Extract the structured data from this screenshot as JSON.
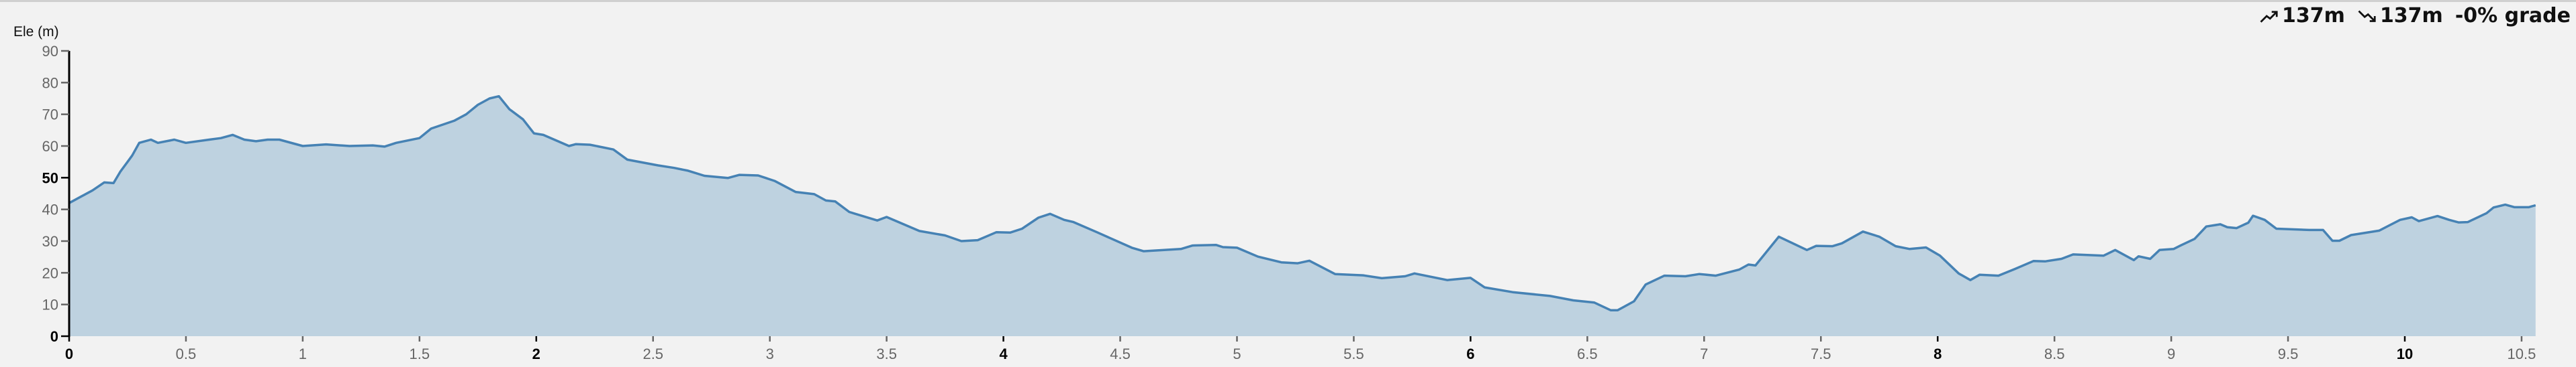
{
  "summary": {
    "ascent": "137m",
    "descent": "137m",
    "grade": "-0% grade",
    "ascent_icon": "trending-up-icon",
    "descent_icon": "trending-down-icon"
  },
  "chart_data": {
    "type": "area",
    "title": "",
    "xlabel": "",
    "ylabel": "Ele (m)",
    "xlim": [
      0,
      10.56
    ],
    "ylim": [
      0,
      90
    ],
    "grid": false,
    "colors": {
      "line": "#4682b4",
      "fill": "#bed2e0",
      "background": "#f2f2f2"
    },
    "y_ticks": [
      0,
      10,
      20,
      30,
      40,
      50,
      60,
      70,
      80,
      90
    ],
    "y_major_ticks": [
      0,
      50
    ],
    "x_ticks": [
      0,
      0.5,
      1,
      1.5,
      2,
      2.5,
      3,
      3.5,
      4,
      4.5,
      5,
      5.5,
      6,
      6.5,
      7,
      7.5,
      8,
      8.5,
      9,
      9.5,
      10,
      10.5
    ],
    "x_major_ticks": [
      0,
      2,
      4,
      6,
      8,
      10
    ],
    "x": [
      0,
      0.05,
      0.1,
      0.15,
      0.19,
      0.22,
      0.25,
      0.27,
      0.3,
      0.35,
      0.38,
      0.45,
      0.5,
      0.6,
      0.65,
      0.7,
      0.75,
      0.8,
      0.85,
      0.9,
      1.0,
      1.1,
      1.2,
      1.3,
      1.35,
      1.4,
      1.5,
      1.55,
      1.65,
      1.7,
      1.75,
      1.8,
      1.84,
      1.885,
      1.943,
      1.99,
      2.03,
      2.14,
      2.17,
      2.23,
      2.33,
      2.39,
      2.52,
      2.59,
      2.65,
      2.72,
      2.82,
      2.87,
      2.95,
      3.02,
      3.11,
      3.19,
      3.24,
      3.28,
      3.34,
      3.46,
      3.5,
      3.64,
      3.75,
      3.82,
      3.89,
      3.97,
      4.03,
      4.08,
      4.15,
      4.2,
      4.26,
      4.3,
      4.4,
      4.55,
      4.6,
      4.76,
      4.81,
      4.91,
      4.94,
      5.0,
      5.09,
      5.19,
      5.26,
      5.31,
      5.42,
      5.54,
      5.62,
      5.72,
      5.76,
      5.9,
      6.0,
      6.06,
      6.18,
      6.34,
      6.44,
      6.53,
      6.6,
      6.63,
      6.7,
      6.75,
      6.83,
      6.92,
      6.98,
      7.05,
      7.15,
      7.19,
      7.22,
      7.32,
      7.44,
      7.48,
      7.55,
      7.59,
      7.68,
      7.75,
      7.82,
      7.88,
      7.95,
      8.01,
      8.09,
      8.14,
      8.18,
      8.26,
      8.33,
      8.41,
      8.46,
      8.53,
      8.58,
      8.71,
      8.76,
      8.84,
      8.86,
      8.91,
      8.95,
      9.01,
      9.04,
      9.1,
      9.15,
      9.21,
      9.24,
      9.28,
      9.33,
      9.35,
      9.4,
      9.45,
      9.59,
      9.65,
      9.69,
      9.72,
      9.77,
      9.89,
      9.98,
      10.03,
      10.06,
      10.14,
      10.19,
      10.23,
      10.27,
      10.35,
      10.38,
      10.43,
      10.47,
      10.53,
      10.56
    ],
    "y": [
      42,
      44,
      46,
      48.5,
      48.3,
      52,
      55,
      57,
      61,
      62,
      61,
      62,
      61,
      62,
      62.5,
      63.5,
      62,
      61.5,
      62,
      62,
      60,
      60.5,
      60,
      60.2,
      59.8,
      61,
      62.5,
      65.5,
      68,
      70,
      73,
      75,
      75.7,
      71.6,
      68.4,
      64,
      63.5,
      60,
      60.6,
      60.4,
      58.9,
      55.7,
      53.9,
      53.1,
      52.2,
      50.6,
      49.9,
      50.9,
      50.7,
      49,
      45.5,
      44.8,
      42.8,
      42.5,
      39.2,
      36.5,
      37.6,
      33.2,
      31.8,
      30,
      30.3,
      32.8,
      32.7,
      33.9,
      37.4,
      38.6,
      36.7,
      36,
      32.8,
      27.9,
      26.8,
      27.5,
      28.6,
      28.8,
      28.1,
      27.9,
      25.1,
      23.3,
      23,
      23.8,
      19.6,
      19.2,
      18.3,
      18.9,
      19.8,
      17.7,
      18.4,
      15.4,
      13.9,
      12.7,
      11.3,
      10.6,
      8.2,
      8.2,
      11,
      16.3,
      19.1,
      18.9,
      19.6,
      19.1,
      21,
      22.6,
      22.3,
      31.4,
      27.2,
      28.5,
      28.4,
      29.3,
      33,
      31.4,
      28.4,
      27.5,
      28,
      25.4,
      19.8,
      17.7,
      19.4,
      19.1,
      21.2,
      23.7,
      23.6,
      24.4,
      25.8,
      25.4,
      27.2,
      24,
      25.2,
      24.4,
      27.2,
      27.5,
      28.6,
      30.7,
      34.6,
      35.3,
      34.4,
      34.1,
      35.8,
      38,
      36.7,
      33.9,
      33.5,
      33.5,
      30.1,
      30.1,
      31.9,
      33.3,
      36.7,
      37.5,
      36.3,
      37.9,
      36.7,
      35.9,
      36,
      38.8,
      40.6,
      41.5,
      40.7,
      40.7,
      41.3
    ]
  }
}
